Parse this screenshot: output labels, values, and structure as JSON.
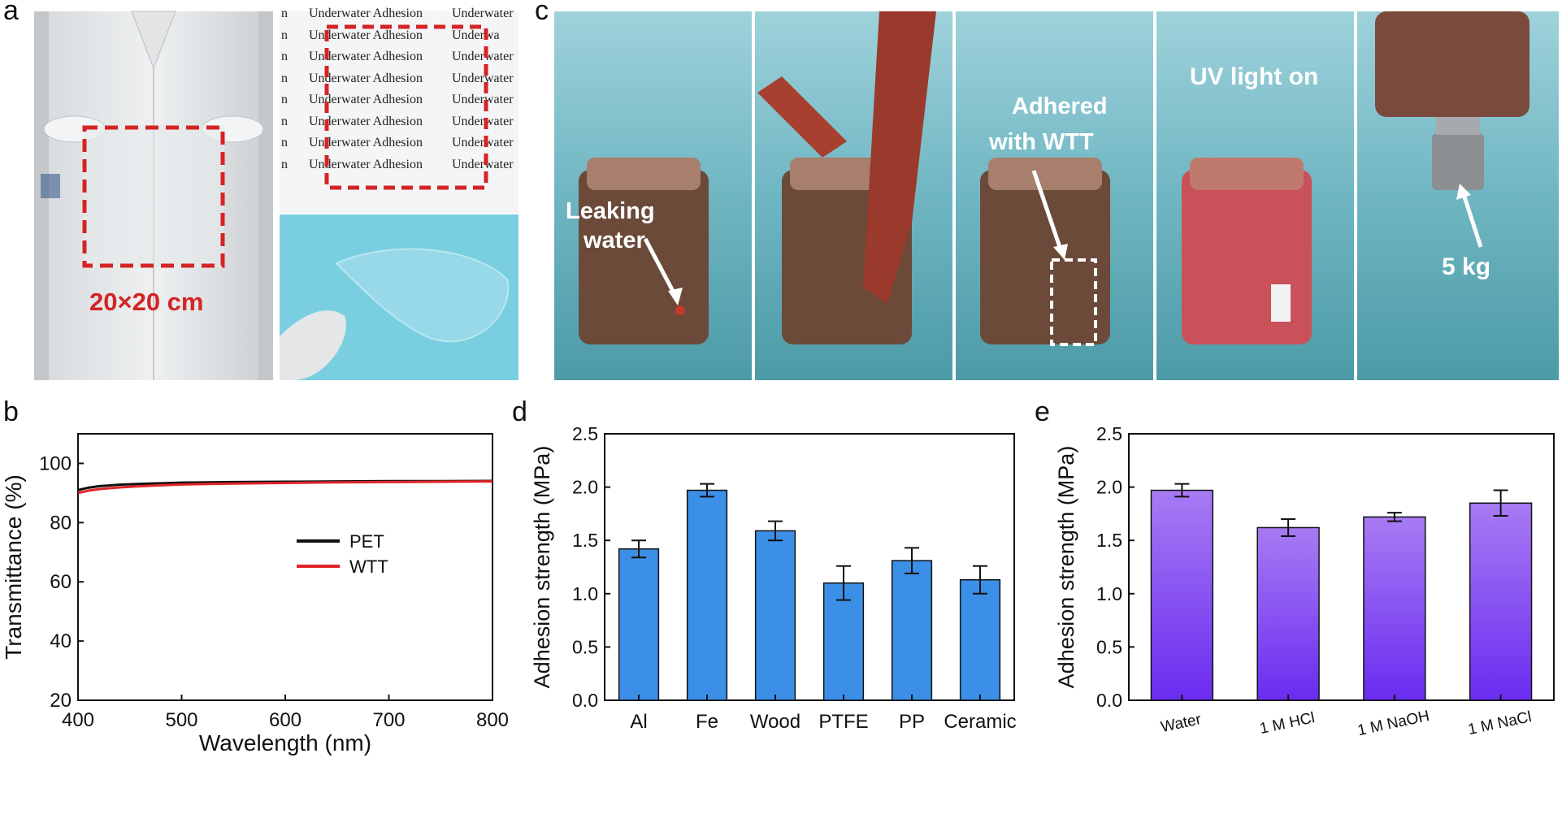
{
  "panels": {
    "a": "a",
    "b": "b",
    "c": "c",
    "d": "d",
    "e": "e"
  },
  "photo_a": {
    "size_label": "20×20 cm",
    "paper_lines": [
      [
        "n",
        "Underwater Adhesion",
        "Underwater"
      ],
      [
        "n",
        "Underwater Adhesion",
        "Underwa"
      ],
      [
        "n",
        "Underwater Adhesion",
        "Underwater"
      ],
      [
        "n",
        "Underwater Adhesion",
        "Underwater"
      ],
      [
        "n",
        "Underwater Adhesion",
        "Underwater"
      ],
      [
        "n",
        "Underwater Adhesion",
        "Underwater"
      ],
      [
        "n",
        "Underwater Adhesion",
        "Underwater"
      ],
      [
        "n",
        "Underwater Adhesion",
        "Underwater"
      ]
    ]
  },
  "photo_c": {
    "leaking_label_1": "Leaking",
    "leaking_label_2": "water",
    "adhered_label_1": "Adhered",
    "adhered_label_2": "with WTT",
    "uv_label": "UV light on",
    "weight_label": "5 kg"
  },
  "chart_data": [
    {
      "panel": "b",
      "type": "line",
      "xlabel": "Wavelength (nm)",
      "ylabel": "Transmittance (%)",
      "xlim": [
        400,
        800
      ],
      "ylim": [
        20,
        110
      ],
      "xticks": [
        400,
        500,
        600,
        700,
        800
      ],
      "yticks": [
        20,
        40,
        60,
        80,
        100
      ],
      "legend_position": "middle-right",
      "series": [
        {
          "name": "PET",
          "color": "#111111",
          "x": [
            400,
            410,
            420,
            440,
            460,
            480,
            500,
            550,
            600,
            650,
            700,
            750,
            800
          ],
          "y": [
            91.0,
            91.8,
            92.3,
            92.8,
            93.1,
            93.3,
            93.5,
            93.7,
            93.8,
            93.9,
            94.0,
            94.0,
            94.1
          ]
        },
        {
          "name": "WTT",
          "color": "#e0252b",
          "x": [
            400,
            410,
            420,
            440,
            460,
            480,
            500,
            550,
            600,
            650,
            700,
            750,
            800
          ],
          "y": [
            90.0,
            90.8,
            91.3,
            91.9,
            92.3,
            92.6,
            92.9,
            93.2,
            93.4,
            93.6,
            93.7,
            93.8,
            93.9
          ]
        }
      ]
    },
    {
      "panel": "d",
      "type": "bar",
      "xlabel": "",
      "ylabel": "Adhesion strength (MPa)",
      "ylim": [
        0,
        2.5
      ],
      "yticks": [
        "0.0",
        "0.5",
        "1.0",
        "1.5",
        "2.0",
        "2.5"
      ],
      "categories": [
        "Al",
        "Fe",
        "Wood",
        "PTFE",
        "PP",
        "Ceramic"
      ],
      "values": [
        1.42,
        1.97,
        1.59,
        1.1,
        1.31,
        1.13
      ],
      "errors": [
        0.08,
        0.06,
        0.09,
        0.16,
        0.12,
        0.13
      ],
      "bar_color": "#3b8fe6"
    },
    {
      "panel": "e",
      "type": "bar",
      "xlabel": "",
      "ylabel": "Adhesion strength (MPa)",
      "ylim": [
        0,
        2.5
      ],
      "yticks": [
        "0.0",
        "0.5",
        "1.0",
        "1.5",
        "2.0",
        "2.5"
      ],
      "categories": [
        "Water",
        "1 M HCl",
        "1 M NaOH",
        "1 M NaCl"
      ],
      "values": [
        1.97,
        1.62,
        1.72,
        1.85
      ],
      "errors": [
        0.06,
        0.08,
        0.04,
        0.12
      ],
      "bar_color_top": "#a77bf3",
      "bar_color_bottom": "#6a2cf0"
    }
  ]
}
